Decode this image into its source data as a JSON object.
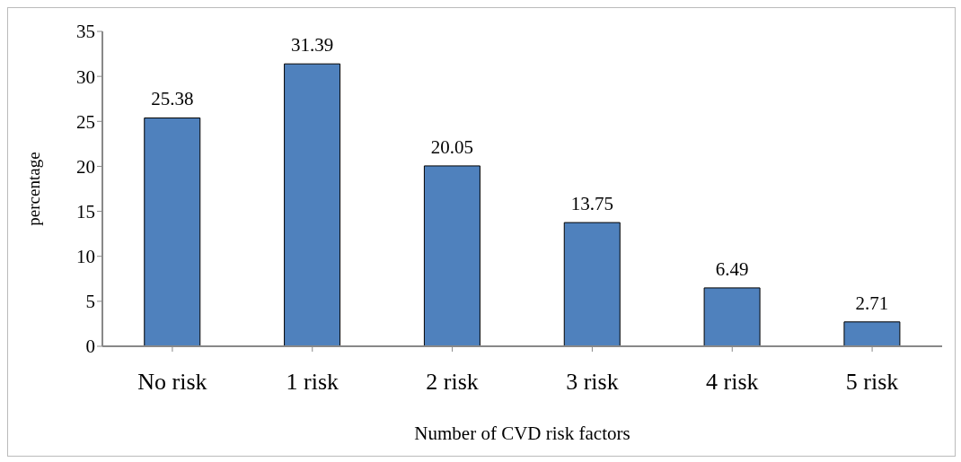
{
  "chart_data": {
    "type": "bar",
    "xlabel": "Number of CVD risk factors",
    "ylabel": "percentage",
    "categories": [
      "No risk",
      "1 risk",
      "2 risk",
      "3 risk",
      "4 risk",
      "5 risk"
    ],
    "values": [
      25.38,
      31.39,
      20.05,
      13.75,
      6.49,
      2.71
    ],
    "color": "#4f81bd",
    "ylim": [
      0,
      35
    ],
    "yticks": [
      0,
      5,
      10,
      15,
      20,
      25,
      30,
      35
    ],
    "grid": false,
    "data_labels": true
  }
}
